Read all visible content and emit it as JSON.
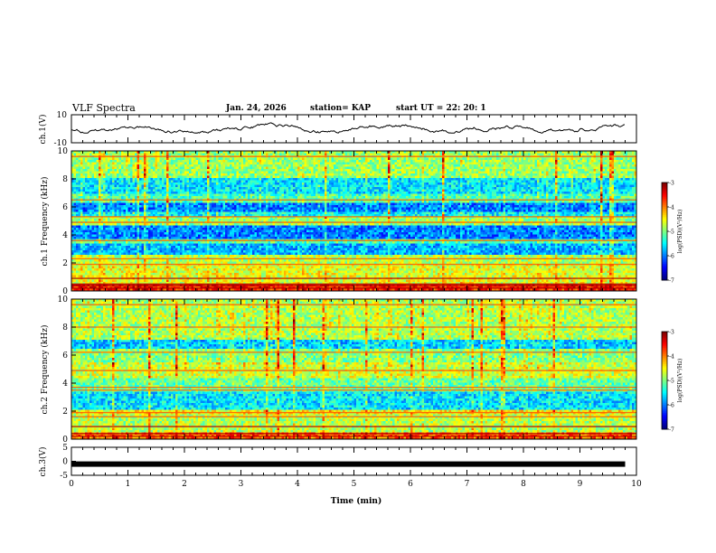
{
  "header": {
    "title": "VLF Spectra",
    "date": "Jan. 24, 2026",
    "station": "station= KAP",
    "start": "start  UT  =   22: 20: 1"
  },
  "chart_data": [
    {
      "type": "line",
      "panel": "ch1-voltage",
      "ylabel": "ch.1(V)",
      "ylim": [
        -10,
        10
      ],
      "yticks": [
        "10",
        "-10"
      ],
      "xlim": [
        0,
        10
      ],
      "x_min_end": 9.8,
      "y_envelope": [
        -3,
        5
      ]
    },
    {
      "type": "heatmap",
      "panel": "ch1-spectrogram",
      "ylabel": "ch.1 Frequency (kHz)",
      "ylim": [
        0,
        10
      ],
      "yticks": [
        "0",
        "2",
        "4",
        "6",
        "8",
        "10"
      ],
      "xlim": [
        0,
        10
      ],
      "colorbar": {
        "min": -7,
        "max": -3,
        "ticks": [
          "-3",
          "-4",
          "-5",
          "-6",
          "-7"
        ],
        "label": "log(PSD)(V²/Hz)"
      },
      "bands": [
        {
          "from": 0.0,
          "to": 0.6,
          "level": -3.6
        },
        {
          "from": 0.6,
          "to": 2.0,
          "level": -4.6
        },
        {
          "from": 2.0,
          "to": 2.7,
          "level": -4.8
        },
        {
          "from": 2.7,
          "to": 3.4,
          "level": -5.8
        },
        {
          "from": 3.4,
          "to": 3.8,
          "level": -5.2
        },
        {
          "from": 3.8,
          "to": 4.8,
          "level": -6.0
        },
        {
          "from": 4.8,
          "to": 5.4,
          "level": -4.9
        },
        {
          "from": 5.4,
          "to": 5.8,
          "level": -5.5
        },
        {
          "from": 5.8,
          "to": 6.4,
          "level": -6.0
        },
        {
          "from": 6.4,
          "to": 7.0,
          "level": -5.2
        },
        {
          "from": 7.0,
          "to": 8.2,
          "level": -5.6
        },
        {
          "from": 8.2,
          "to": 10.0,
          "level": -4.9
        }
      ],
      "lines_khz": [
        0.2,
        0.4,
        0.5,
        0.9,
        1.9,
        2.3,
        3.6,
        4.9,
        5.3,
        6.5,
        9.6
      ]
    },
    {
      "type": "heatmap",
      "panel": "ch2-spectrogram",
      "ylabel": "ch.2 Frequency (kHz)",
      "ylim": [
        0,
        10
      ],
      "yticks": [
        "0",
        "2",
        "4",
        "6",
        "8",
        "10"
      ],
      "xlim": [
        0,
        10
      ],
      "colorbar": {
        "min": -7,
        "max": -3,
        "ticks": [
          "-3",
          "-4",
          "-5",
          "-6",
          "-7"
        ],
        "label": "log(PSD)(V²/Hz)"
      },
      "bands": [
        {
          "from": 0.0,
          "to": 0.6,
          "level": -3.9
        },
        {
          "from": 0.6,
          "to": 1.8,
          "level": -4.8
        },
        {
          "from": 1.8,
          "to": 2.2,
          "level": -4.5
        },
        {
          "from": 2.2,
          "to": 3.5,
          "level": -5.6
        },
        {
          "from": 3.5,
          "to": 4.4,
          "level": -5.1
        },
        {
          "from": 4.4,
          "to": 5.6,
          "level": -4.7
        },
        {
          "from": 5.6,
          "to": 6.6,
          "level": -5.0
        },
        {
          "from": 6.6,
          "to": 7.2,
          "level": -5.7
        },
        {
          "from": 7.2,
          "to": 10.0,
          "level": -4.8
        }
      ],
      "lines_khz": [
        0.2,
        0.4,
        0.9,
        1.6,
        1.9,
        3.5,
        3.7,
        4.9,
        6.2,
        8.0,
        9.6
      ]
    },
    {
      "type": "line",
      "panel": "ch3-voltage",
      "ylabel": "ch.3(V)",
      "ylim": [
        -5,
        5
      ],
      "yticks": [
        "5",
        "0",
        "-5"
      ],
      "xlim": [
        0,
        10
      ],
      "x_min_end": 9.8,
      "value": -1.0,
      "xlabel": "Time  (min)",
      "xticks": [
        "0",
        "1",
        "2",
        "3",
        "4",
        "5",
        "6",
        "7",
        "8",
        "9",
        "10"
      ]
    }
  ]
}
